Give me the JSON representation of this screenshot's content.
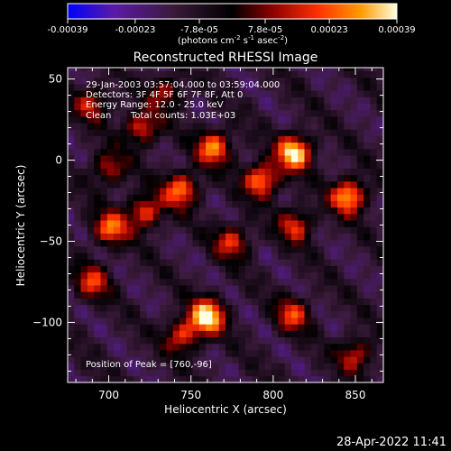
{
  "colorbar": {
    "tick_labels": [
      "-0.00039",
      "-0.00023",
      "-7.8e-05",
      "7.8e-05",
      "0.00023",
      "0.00039"
    ],
    "tick_values": [
      -0.00039,
      -0.00023,
      -7.8e-05,
      7.8e-05,
      0.00023,
      0.00039
    ],
    "range": [
      -0.00039,
      0.00039
    ],
    "units_prefix": "(photons cm",
    "units_sup1": "-2",
    "units_mid": " s",
    "units_sup2": "-1",
    "units_mid2": " asec",
    "units_sup3": "-2",
    "units_suffix": ")",
    "colors": [
      "#0000ff",
      "#5a1aa8",
      "#3a1a3a",
      "#000000",
      "#8a0000",
      "#ff3000",
      "#ff9a00",
      "#ffffe0"
    ]
  },
  "chart_data": {
    "type": "heatmap",
    "title": "Reconstructed RHESSI Image",
    "xlabel": "Heliocentric X (arcsec)",
    "ylabel": "Heliocentric Y (arcsec)",
    "xlim": [
      675,
      867
    ],
    "ylim": [
      -137,
      57
    ],
    "x_ticks": [
      700,
      750,
      800,
      850
    ],
    "y_ticks": [
      50,
      0,
      -50,
      -100
    ],
    "y_tick_labels": [
      "50",
      "0",
      "−50",
      "−100"
    ],
    "peak": [
      760,
      -96
    ],
    "annotations": [
      "29-Jan-2003 03:57:04.000 to 03:59:04.000",
      "Detectors: 3F 4F 5F 6F 7F 8F, Att 0",
      "Energy Range: 12.0 - 25.0 keV",
      "Clean",
      "Total counts: 1.03E+03"
    ],
    "peak_label": "Position of Peak = [760,-96]",
    "sources": [
      {
        "x": 813,
        "y": 5,
        "intensity": 0.00039
      },
      {
        "x": 760,
        "y": -96,
        "intensity": 0.00039
      },
      {
        "x": 846,
        "y": -22,
        "intensity": 0.00033
      },
      {
        "x": 793,
        "y": -12,
        "intensity": 0.0003
      },
      {
        "x": 764,
        "y": 8,
        "intensity": 0.00028
      },
      {
        "x": 744,
        "y": -18,
        "intensity": 0.00027
      },
      {
        "x": 701,
        "y": -42,
        "intensity": 0.00024
      },
      {
        "x": 722,
        "y": -32,
        "intensity": 0.00022
      },
      {
        "x": 720,
        "y": 20,
        "intensity": 0.0002
      },
      {
        "x": 775,
        "y": -50,
        "intensity": 0.00018
      },
      {
        "x": 814,
        "y": -40,
        "intensity": 0.00018
      },
      {
        "x": 690,
        "y": -75,
        "intensity": 0.00017
      },
      {
        "x": 745,
        "y": -108,
        "intensity": 0.0002
      },
      {
        "x": 812,
        "y": -95,
        "intensity": 0.00018
      },
      {
        "x": 850,
        "y": -120,
        "intensity": 0.00016
      },
      {
        "x": 690,
        "y": 35,
        "intensity": 0.00014
      },
      {
        "x": 700,
        "y": -5,
        "intensity": 0.00014
      },
      {
        "x": 735,
        "y": 42,
        "intensity": 0.00012
      }
    ]
  },
  "footer": {
    "timestamp": "28-Apr-2022 11:41"
  }
}
